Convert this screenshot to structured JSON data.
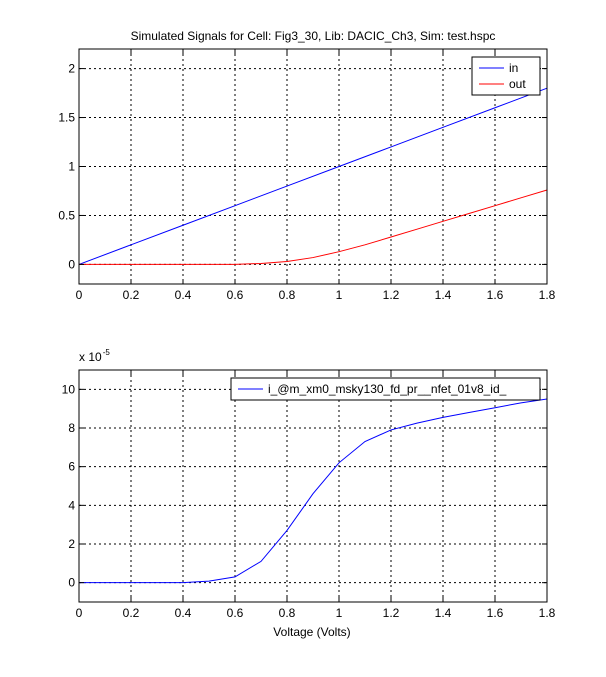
{
  "figure": {
    "title": "Simulated Signals for Cell: Fig3_30, Lib: DACIC_Ch3, Sim: test.hspc"
  },
  "colors": {
    "background": "#ffffff",
    "axes": "#000000",
    "grid": "#000000",
    "in": "#0000ff",
    "out": "#ff0000",
    "current": "#0000ff"
  },
  "chart_data": [
    {
      "type": "line",
      "title": "Simulated Signals for Cell: Fig3_30, Lib: DACIC_Ch3, Sim: test.hspc",
      "xlabel": "",
      "ylabel": "",
      "xlim": [
        0,
        1.8
      ],
      "ylim": [
        -0.2,
        2.2
      ],
      "xticks": [
        0,
        0.2,
        0.4,
        0.6,
        0.8,
        1,
        1.2,
        1.4,
        1.6,
        1.8
      ],
      "xtick_labels": [
        "0",
        "0.2",
        "0.4",
        "0.6",
        "0.8",
        "1",
        "1.2",
        "1.4",
        "1.6",
        "1.8"
      ],
      "yticks": [
        0,
        0.5,
        1,
        1.5,
        2
      ],
      "ytick_labels": [
        "0",
        "0.5",
        "1",
        "1.5",
        "2"
      ],
      "grid": true,
      "legend_position": "top-right",
      "series": [
        {
          "name": "in",
          "color": "#0000ff",
          "x": [
            0,
            0.2,
            0.4,
            0.6,
            0.8,
            1.0,
            1.2,
            1.4,
            1.6,
            1.8
          ],
          "y": [
            0,
            0.2,
            0.4,
            0.6,
            0.8,
            1.0,
            1.2,
            1.4,
            1.6,
            1.8
          ]
        },
        {
          "name": "out",
          "color": "#ff0000",
          "x": [
            0,
            0.2,
            0.4,
            0.6,
            0.7,
            0.8,
            0.9,
            1.0,
            1.1,
            1.2,
            1.3,
            1.4,
            1.5,
            1.6,
            1.7,
            1.8
          ],
          "y": [
            0,
            0,
            0,
            0,
            0.01,
            0.03,
            0.07,
            0.13,
            0.2,
            0.28,
            0.36,
            0.44,
            0.52,
            0.6,
            0.68,
            0.76
          ]
        }
      ]
    },
    {
      "type": "line",
      "title": "",
      "xlabel": "Voltage (Volts)",
      "ylabel": "",
      "y_multiplier": "x 10",
      "y_multiplier_exponent": "-5",
      "xlim": [
        0,
        1.8
      ],
      "ylim": [
        -1,
        11
      ],
      "xticks": [
        0,
        0.2,
        0.4,
        0.6,
        0.8,
        1,
        1.2,
        1.4,
        1.6,
        1.8
      ],
      "xtick_labels": [
        "0",
        "0.2",
        "0.4",
        "0.6",
        "0.8",
        "1",
        "1.2",
        "1.4",
        "1.6",
        "1.8"
      ],
      "yticks": [
        0,
        2,
        4,
        6,
        8,
        10
      ],
      "ytick_labels": [
        "0",
        "2",
        "4",
        "6",
        "8",
        "10"
      ],
      "grid": true,
      "legend_position": "top-right",
      "series": [
        {
          "name": "i_@m_xm0_msky130_fd_pr__nfet_01v8_id_",
          "color": "#0000ff",
          "x": [
            0,
            0.1,
            0.2,
            0.3,
            0.4,
            0.5,
            0.6,
            0.7,
            0.8,
            0.9,
            1.0,
            1.1,
            1.2,
            1.3,
            1.4,
            1.5,
            1.6,
            1.7,
            1.8
          ],
          "y": [
            0,
            0,
            0,
            0,
            0,
            0.08,
            0.3,
            1.1,
            2.7,
            4.6,
            6.2,
            7.3,
            7.9,
            8.25,
            8.55,
            8.8,
            9.05,
            9.3,
            9.5
          ]
        }
      ]
    }
  ]
}
